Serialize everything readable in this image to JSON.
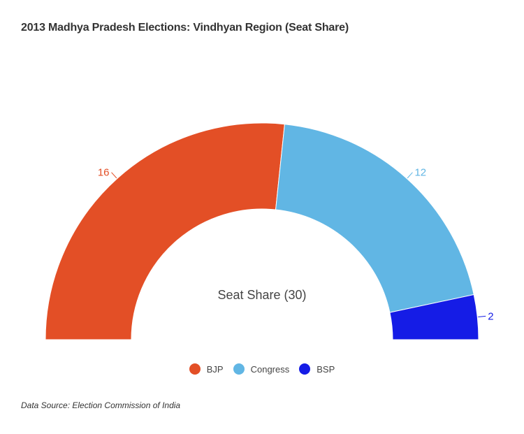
{
  "title": "2013 Madhya Pradesh Elections: Vindhyan Region (Seat Share)",
  "center_label": "Seat Share (30)",
  "source": "Data Source: Election Commission of India",
  "legend": [
    {
      "label": "BJP",
      "color": "#e34f26"
    },
    {
      "label": "Congress",
      "color": "#61b6e4"
    },
    {
      "label": "BSP",
      "color": "#151ce6"
    }
  ],
  "chart_data": {
    "type": "pie",
    "subtype": "semi-donut",
    "title": "2013 Madhya Pradesh Elections: Vindhyan Region (Seat Share)",
    "center_label": "Seat Share (30)",
    "categories": [
      "BJP",
      "Congress",
      "BSP"
    ],
    "values": [
      16,
      12,
      2
    ],
    "total": 30,
    "colors": [
      "#e34f26",
      "#61b6e4",
      "#151ce6"
    ],
    "legend_position": "bottom",
    "annotations": [
      "Data Source: Election Commission of India"
    ]
  }
}
